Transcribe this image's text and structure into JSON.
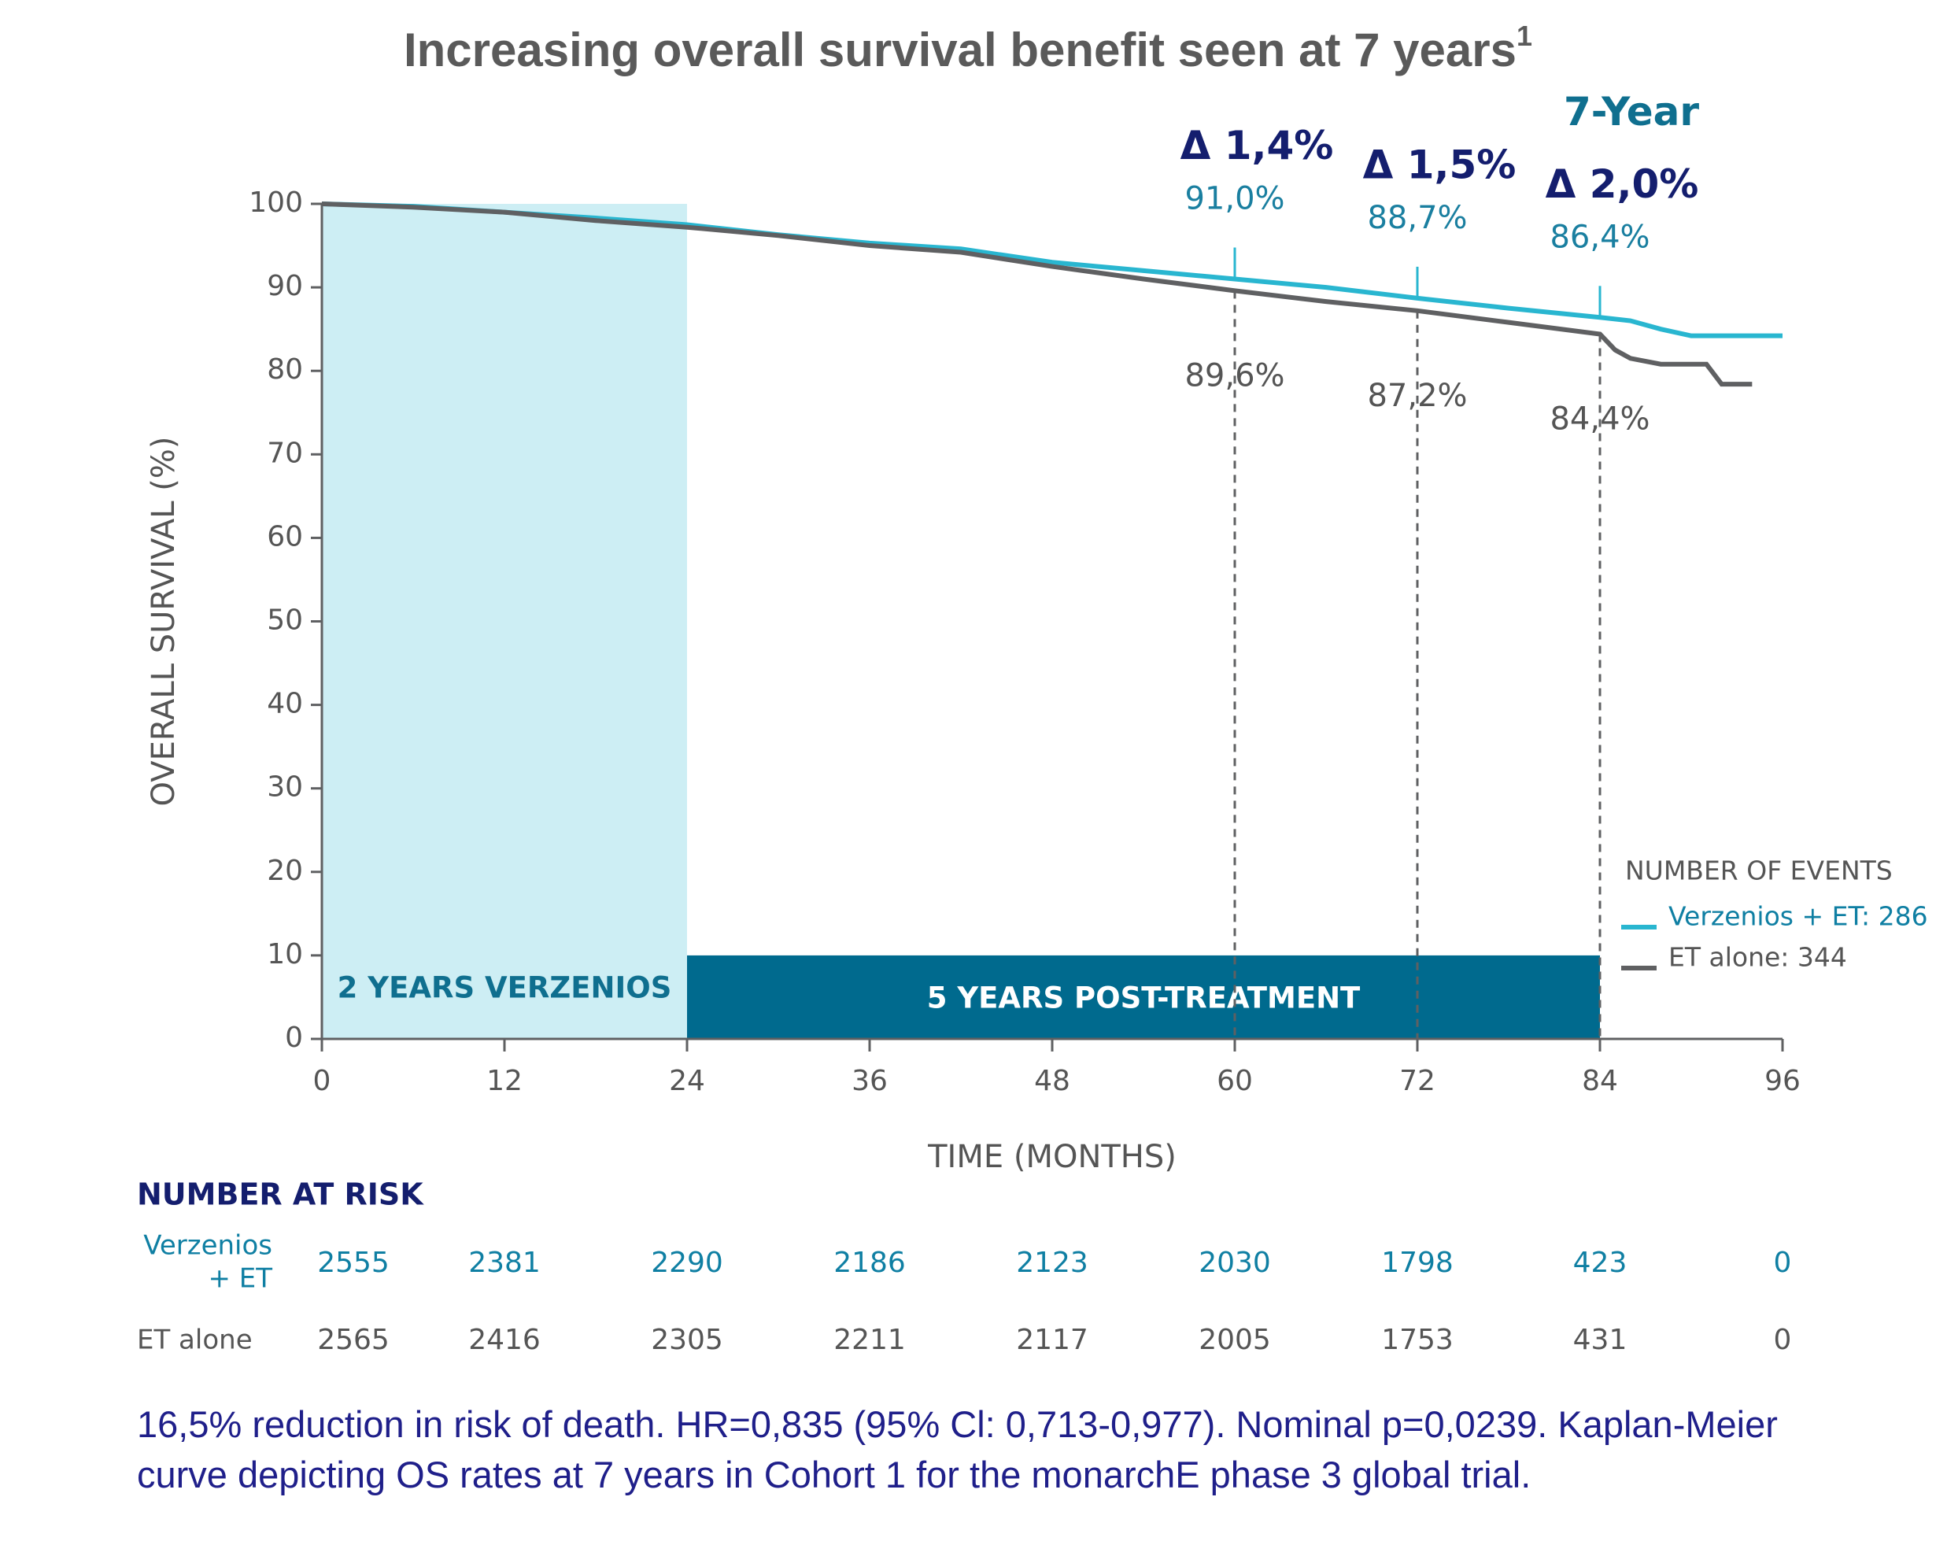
{
  "chart_data": {
    "type": "line",
    "title": "Increasing overall survival benefit seen at 7 years",
    "title_note": "1",
    "x_label": "TIME (MONTHS)",
    "y_label": "OVERALL SURVIVAL (%)",
    "xlim": [
      0,
      96
    ],
    "xticks": [
      0,
      12,
      24,
      36,
      48,
      60,
      72,
      84,
      96
    ],
    "ylim": [
      0,
      100
    ],
    "yticks": [
      0,
      10,
      20,
      30,
      40,
      50,
      60,
      70,
      80,
      90,
      100
    ],
    "series": [
      {
        "name": "Verzenios + ET: 286",
        "color": "#29b6d0",
        "x": [
          0,
          6,
          12,
          18,
          24,
          30,
          36,
          42,
          48,
          54,
          60,
          66,
          72,
          78,
          84,
          86,
          88,
          90,
          96
        ],
        "values": [
          100,
          99.7,
          99.0,
          98.3,
          97.5,
          96.3,
          95.3,
          94.6,
          93.0,
          92.0,
          91.0,
          90.0,
          88.7,
          87.5,
          86.4,
          86.0,
          85.0,
          84.2,
          84.2
        ]
      },
      {
        "name": "ET alone: 344",
        "color": "#5f6062",
        "x": [
          0,
          6,
          12,
          18,
          24,
          30,
          36,
          42,
          48,
          54,
          60,
          66,
          72,
          78,
          84,
          85,
          86,
          88,
          91,
          92,
          94
        ],
        "values": [
          100,
          99.6,
          99.0,
          98.0,
          97.2,
          96.2,
          95.0,
          94.2,
          92.5,
          91.0,
          89.6,
          88.3,
          87.2,
          85.8,
          84.4,
          82.5,
          81.5,
          80.8,
          80.8,
          78.4,
          78.4
        ]
      }
    ],
    "legend_title": "NUMBER OF EVENTS",
    "spans": [
      {
        "start": 0,
        "end": 24,
        "top": 100,
        "label": "2 YEARS VERZENIOS"
      },
      {
        "start": 24,
        "end": 84,
        "top": 10,
        "label": "5 YEARS POST-TREATMENT"
      }
    ],
    "annotations": [
      {
        "x": 60,
        "delta": "Δ 1,4%",
        "upper": "91,0%",
        "lower": "89,6%"
      },
      {
        "x": 72,
        "delta": "Δ 1,5%",
        "upper": "88,7%",
        "lower": "87,2%"
      },
      {
        "x": 84,
        "header": "7-Year",
        "delta": "Δ 2,0%",
        "upper": "86,4%",
        "lower": "84,4%"
      }
    ],
    "risk_table": {
      "title": "NUMBER AT RISK",
      "rows": [
        {
          "label": [
            "Verzenios",
            "+ ET"
          ],
          "values": [
            2555,
            2381,
            2290,
            2186,
            2123,
            2030,
            1798,
            423,
            0
          ]
        },
        {
          "label": [
            "ET alone"
          ],
          "values": [
            2565,
            2416,
            2305,
            2211,
            2117,
            2005,
            1753,
            431,
            0
          ]
        }
      ]
    },
    "footnote": "16,5% reduction in risk of death. HR=0,835 (95% Cl: 0,713-0,977). Nominal p=0,0239. Kaplan-Meier curve depicting OS rates at 7 years in Cohort 1 for the monarchE phase 3 global trial."
  }
}
